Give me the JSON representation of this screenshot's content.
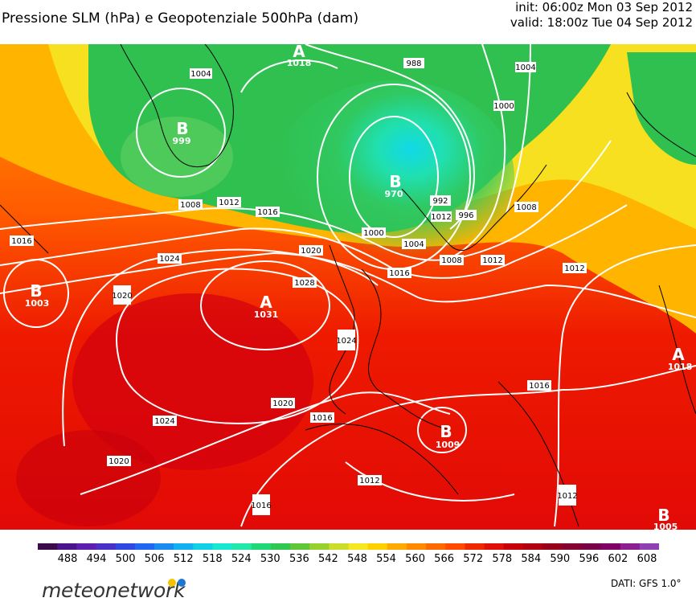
{
  "header": {
    "title": "Pressione SLM (hPa) e Geopotenziale 500hPa (dam)",
    "init": "init: 06:00z Mon 03 Sep 2012",
    "valid": "valid: 18:00z Tue 04 Sep 2012"
  },
  "map": {
    "centers": [
      {
        "type": "A",
        "value": "1018"
      },
      {
        "type": "B",
        "value": "999"
      },
      {
        "type": "B",
        "value": "970"
      },
      {
        "type": "B",
        "value": "1003"
      },
      {
        "type": "A",
        "value": "1031"
      },
      {
        "type": "B",
        "value": "1009"
      },
      {
        "type": "A",
        "value": "1018"
      },
      {
        "type": "B",
        "value": "1005"
      }
    ],
    "isobar_labels": [
      "1004",
      "988",
      "1004",
      "1000",
      "1008",
      "1012",
      "1016",
      "992",
      "996",
      "1008",
      "1000",
      "1004",
      "1008",
      "1012",
      "1016",
      "1016",
      "1024",
      "1020",
      "1028",
      "1020",
      "1012",
      "1016",
      "1024",
      "1020",
      "1020",
      "1016",
      "1024",
      "1016",
      "1012",
      "1012",
      "1012"
    ]
  },
  "colorbar": {
    "unit_note": "",
    "ticks": [
      "488",
      "494",
      "500",
      "506",
      "512",
      "518",
      "524",
      "530",
      "536",
      "542",
      "548",
      "554",
      "560",
      "566",
      "572",
      "578",
      "584",
      "590",
      "596",
      "602",
      "608"
    ],
    "colors": [
      "#3d0a4a",
      "#4a148c",
      "#5e1fb0",
      "#4b30c8",
      "#3048e0",
      "#2266f2",
      "#1a8cf0",
      "#12b0f0",
      "#10d0e8",
      "#18e8d0",
      "#20e8a8",
      "#20d878",
      "#30c850",
      "#60c838",
      "#98d030",
      "#ccdc2a",
      "#f6e820",
      "#ffd000",
      "#ffaa00",
      "#ff8a00",
      "#ff6a00",
      "#ff4a00",
      "#f02800",
      "#e01008",
      "#c8000c",
      "#b00012",
      "#98001a",
      "#860030",
      "#7a0048",
      "#800066",
      "#8c2090",
      "#9040b0"
    ]
  },
  "footer": {
    "brand": "meteonetwork",
    "source": "DATI:  GFS  1.0°",
    "dot_colors": [
      "#f5c400",
      "#1e78d2"
    ]
  }
}
